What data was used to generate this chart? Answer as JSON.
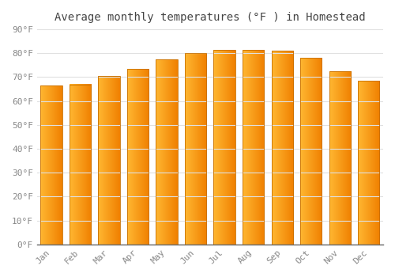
{
  "title": "Average monthly temperatures (°F ) in Homestead",
  "months": [
    "Jan",
    "Feb",
    "Mar",
    "Apr",
    "May",
    "Jun",
    "Jul",
    "Aug",
    "Sep",
    "Oct",
    "Nov",
    "Dec"
  ],
  "values": [
    66.5,
    67.0,
    70.5,
    73.5,
    77.5,
    80.0,
    81.5,
    81.5,
    81.0,
    78.0,
    72.5,
    68.5
  ],
  "bar_color_left": "#FFB732",
  "bar_color_right": "#F08000",
  "bar_edge_color": "#C87000",
  "background_color": "#FFFFFF",
  "grid_color": "#E0E0E0",
  "ylim": [
    0,
    90
  ],
  "yticks": [
    0,
    10,
    20,
    30,
    40,
    50,
    60,
    70,
    80,
    90
  ],
  "ytick_labels": [
    "0°F",
    "10°F",
    "20°F",
    "30°F",
    "40°F",
    "50°F",
    "60°F",
    "70°F",
    "80°F",
    "90°F"
  ],
  "title_fontsize": 10,
  "tick_fontsize": 8,
  "figsize": [
    5.0,
    3.5
  ],
  "dpi": 100,
  "bar_width": 0.75
}
